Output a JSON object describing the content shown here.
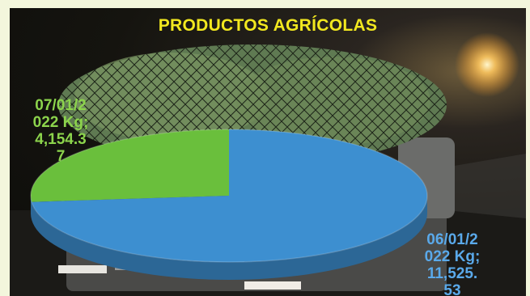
{
  "chart_data": {
    "type": "pie",
    "title": "PRODUCTOS AGRÍCOLAS",
    "categories": [
      "07/01/2022",
      "06/01/2022"
    ],
    "values": [
      4154.37,
      11525.53
    ],
    "unit": "Kg",
    "data_labels": [
      [
        "07/01/2",
        "022 Kg;",
        "4,154.3",
        "7"
      ],
      [
        "06/01/2",
        "022 Kg;",
        "11,525.",
        "53"
      ]
    ],
    "slice_colors": [
      "#6abf3c",
      "#3d8fd0"
    ],
    "label_colors": [
      "#8cd44c",
      "#5aa9ea"
    ],
    "title_color": "#f2e81f",
    "style": "3d-pie",
    "legend": "none"
  }
}
